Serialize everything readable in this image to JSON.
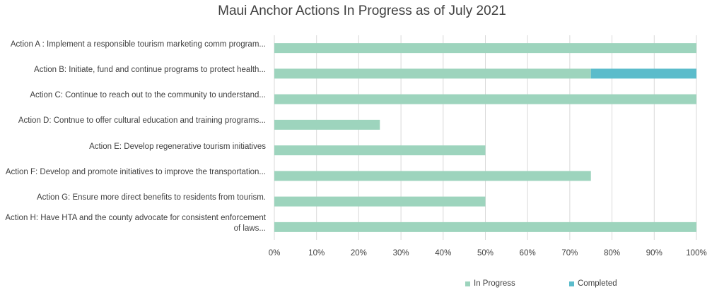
{
  "chart_data": {
    "type": "bar",
    "orientation": "horizontal",
    "stacked": true,
    "title": "Maui Anchor Actions In Progress as of July 2021",
    "categories": [
      "Action A : Implement a responsible tourism marketing comm program...",
      "Action B: Initiate, fund and continue programs to protect health...",
      "Action C: Continue to reach out to the community to understand...",
      "Action D: Contnue to offer cultural education and training programs...",
      "Action E:  Develop regenerative tourism initiatives",
      "Action F: Develop and promote initiatives to improve the transportation...",
      "Action G: Ensure more direct benefits to residents from tourism.",
      "Action H: Have HTA and the county advocate for consistent enforcement of laws..."
    ],
    "series": [
      {
        "name": "In Progress",
        "color": "#9dd4bd",
        "values": [
          1.0,
          0.75,
          1.0,
          0.25,
          0.5,
          0.75,
          0.5,
          1.0
        ]
      },
      {
        "name": "Completed",
        "color": "#5bbccb",
        "values": [
          0,
          0.25,
          0,
          0,
          0,
          0,
          0,
          0
        ]
      }
    ],
    "xlim": [
      0,
      1
    ],
    "xticks": [
      "0%",
      "10%",
      "20%",
      "30%",
      "40%",
      "50%",
      "60%",
      "70%",
      "80%",
      "90%",
      "100%"
    ],
    "grid": true,
    "legend_position": "bottom-right"
  }
}
